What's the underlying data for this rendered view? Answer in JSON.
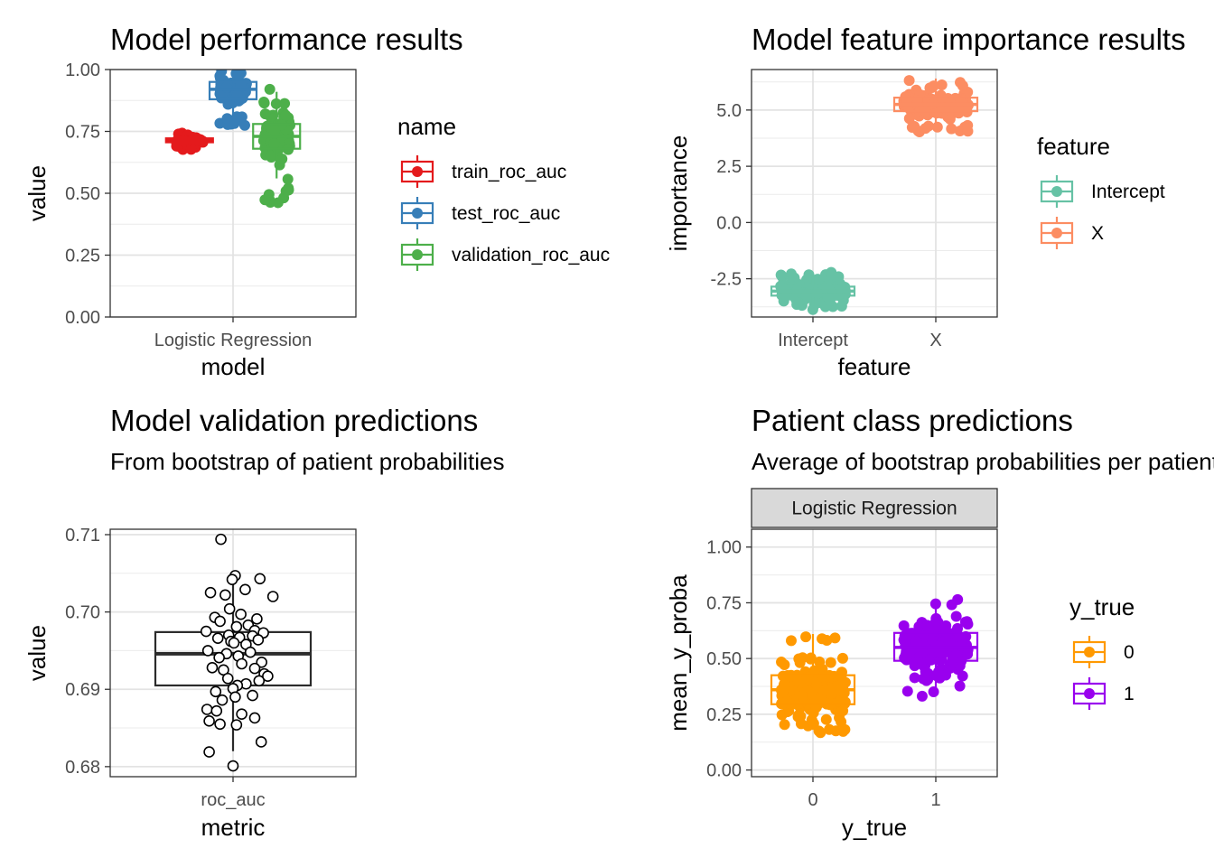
{
  "chart_data": [
    {
      "id": "performance",
      "type": "boxplot",
      "title": "Model performance results",
      "xlabel": "model",
      "ylabel": "value",
      "categories": [
        "Logistic Regression"
      ],
      "ylim": [
        0,
        1
      ],
      "yticks": [
        "0.00",
        "0.25",
        "0.50",
        "0.75",
        "1.00"
      ],
      "legend": {
        "title": "name",
        "position": "right"
      },
      "series": [
        {
          "name": "train_roc_auc",
          "color": "#E41A1C",
          "box": {
            "q1": 0.706,
            "median": 0.714,
            "q3": 0.722,
            "whisker_low": 0.69,
            "whisker_high": 0.738
          },
          "points_range": [
            0.675,
            0.755
          ],
          "n_points": 70,
          "seed": 11
        },
        {
          "name": "test_roc_auc",
          "color": "#377EB8",
          "box": {
            "q1": 0.88,
            "median": 0.92,
            "q3": 0.95,
            "whisker_low": 0.8,
            "whisker_high": 1.0
          },
          "points_range": [
            0.765,
            1.0
          ],
          "n_points": 110,
          "seed": 23
        },
        {
          "name": "validation_roc_auc",
          "color": "#4DAF4A",
          "box": {
            "q1": 0.68,
            "median": 0.73,
            "q3": 0.78,
            "whisker_low": 0.56,
            "whisker_high": 0.91
          },
          "points_range": [
            0.44,
            0.93
          ],
          "n_points": 110,
          "seed": 37
        }
      ]
    },
    {
      "id": "importance",
      "type": "boxplot",
      "title": "Model feature importance results",
      "xlabel": "feature",
      "ylabel": "importance",
      "categories": [
        "Intercept",
        "X"
      ],
      "ylim": [
        -4.2,
        6.8
      ],
      "yticks": [
        "-2.5",
        "0.0",
        "2.5",
        "5.0"
      ],
      "legend": {
        "title": "feature",
        "position": "right"
      },
      "series": [
        {
          "name": "Intercept",
          "color": "#66C2A5",
          "box": {
            "q1": -3.25,
            "median": -3.05,
            "q3": -2.85,
            "whisker_low": -3.7,
            "whisker_high": -2.4
          },
          "points_range": [
            -3.9,
            -2.2
          ],
          "n_points": 220,
          "seed": 41
        },
        {
          "name": "X",
          "color": "#FC8D62",
          "box": {
            "q1": 4.95,
            "median": 5.25,
            "q3": 5.55,
            "whisker_low": 4.3,
            "whisker_high": 6.4
          },
          "points_range": [
            4.0,
            6.6
          ],
          "n_points": 220,
          "seed": 53
        }
      ]
    },
    {
      "id": "validation",
      "type": "boxplot",
      "title": "Model validation predictions",
      "subtitle": "From bootstrap of patient probabilities",
      "xlabel": "metric",
      "ylabel": "value",
      "categories": [
        "roc_auc"
      ],
      "ylim": [
        0.6787,
        0.7107
      ],
      "yticks": [
        "0.68",
        "0.69",
        "0.70",
        "0.71"
      ],
      "box": {
        "q1": 0.6905,
        "median": 0.6946,
        "q3": 0.6974,
        "whisker_low": 0.682,
        "whisker_high": 0.7048
      },
      "points": [
        0.7094,
        0.7047,
        0.7043,
        0.7042,
        0.7029,
        0.7025,
        0.7022,
        0.702,
        0.7004,
        0.6997,
        0.6993,
        0.6991,
        0.6988,
        0.6983,
        0.6981,
        0.6976,
        0.6975,
        0.6973,
        0.697,
        0.6969,
        0.6967,
        0.6966,
        0.6964,
        0.6962,
        0.696,
        0.6958,
        0.695,
        0.6948,
        0.6946,
        0.6943,
        0.6941,
        0.6935,
        0.6933,
        0.6928,
        0.6927,
        0.6925,
        0.692,
        0.6917,
        0.6914,
        0.6911,
        0.6907,
        0.6905,
        0.6901,
        0.6897,
        0.6892,
        0.689,
        0.6886,
        0.6874,
        0.6872,
        0.6868,
        0.6863,
        0.6859,
        0.6855,
        0.6854,
        0.6832,
        0.6819,
        0.6801
      ],
      "point_jitter": [
        -0.28,
        0.05,
        0.62,
        -0.02,
        0.28,
        -0.52,
        -0.18,
        0.92,
        -0.08,
        0.18,
        -0.42,
        0.55,
        -0.3,
        0.35,
        0.08,
        0.5,
        -0.62,
        0.7,
        -0.1,
        0.45,
        0.15,
        -0.35,
        0.58,
        -0.05,
        0.02,
        0.3,
        -0.58,
        0.4,
        -0.15,
        0.12,
        -0.32,
        0.66,
        0.2,
        -0.48,
        0.5,
        -0.22,
        0.72,
        0.8,
        -0.12,
        0.6,
        0.3,
        0.1,
        0.0,
        -0.4,
        0.45,
        0.05,
        -0.25,
        -0.6,
        -0.38,
        0.2,
        0.5,
        -0.55,
        -0.3,
        0.08,
        0.65,
        -0.55,
        0.0
      ]
    },
    {
      "id": "patient",
      "type": "boxplot",
      "title": "Patient class predictions",
      "subtitle": "Average of bootstrap probabilities per patient",
      "facet_label": "Logistic Regression",
      "xlabel": "y_true",
      "ylabel": "mean_y_proba",
      "categories": [
        "0",
        "1"
      ],
      "ylim": [
        -0.03,
        1.08
      ],
      "yticks": [
        "0.00",
        "0.25",
        "0.50",
        "0.75",
        "1.00"
      ],
      "legend": {
        "title": "y_true",
        "position": "right"
      },
      "series": [
        {
          "name": "0",
          "color": "#FF9900",
          "box": {
            "q1": 0.295,
            "median": 0.36,
            "q3": 0.425,
            "whisker_low": 0.18,
            "whisker_high": 0.61
          },
          "points_range": [
            0.165,
            0.62
          ],
          "n_points": 210,
          "seed": 67
        },
        {
          "name": "1",
          "color": "#9900EE",
          "box": {
            "q1": 0.49,
            "median": 0.55,
            "q3": 0.615,
            "whisker_low": 0.34,
            "whisker_high": 0.76
          },
          "points_range": [
            0.33,
            0.78
          ],
          "n_points": 210,
          "seed": 79
        }
      ]
    }
  ]
}
